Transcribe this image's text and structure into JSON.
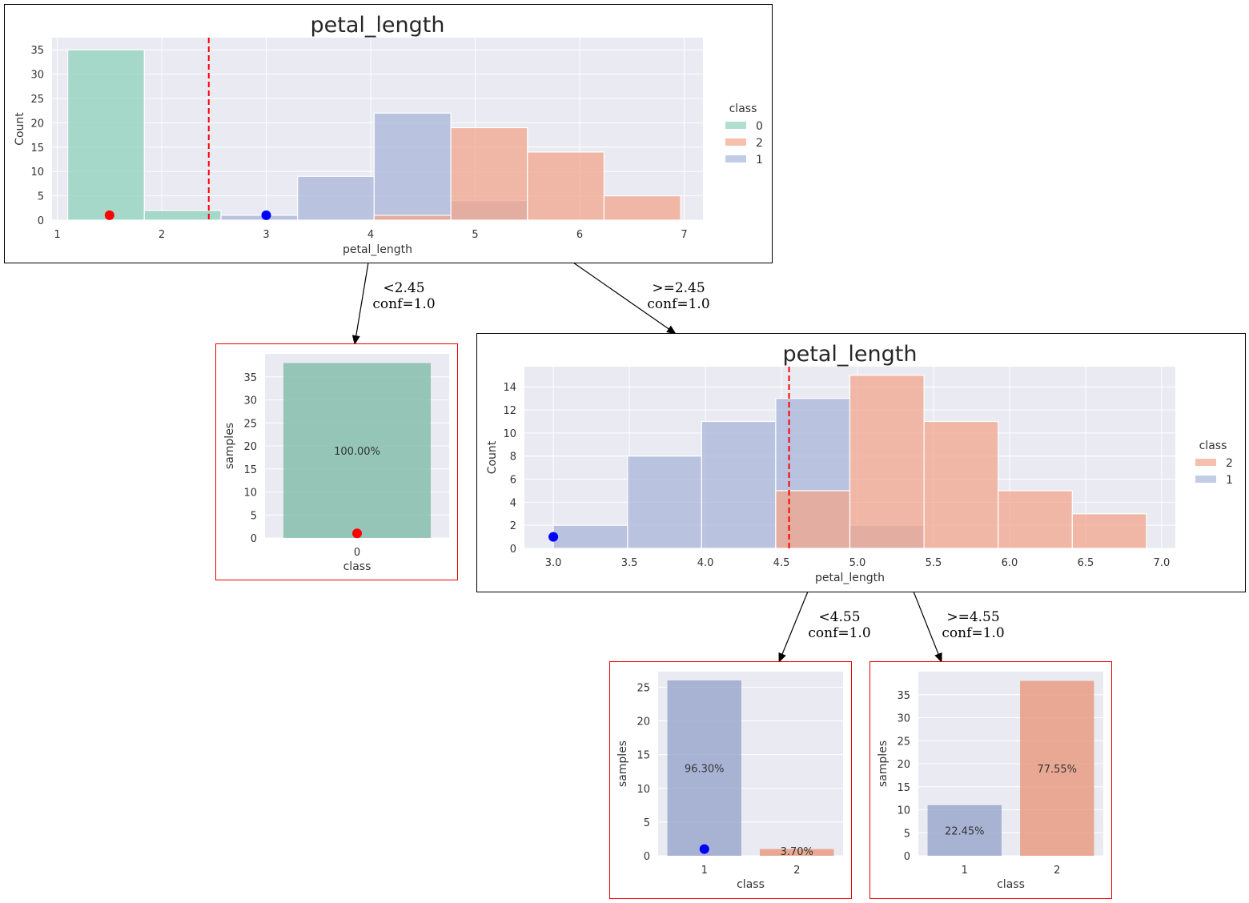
{
  "colors": {
    "class0": "#8fd1bb",
    "class1": "#a8b6da",
    "class2": "#f2a58c",
    "leaf_class0": "#80bca8",
    "leaf_class1": "#97a5cc",
    "leaf_class2": "#e9977b",
    "split_line": "#ff0000",
    "panel_bg": "#eaeaf2",
    "marker_red": "#ff0000",
    "marker_blue": "#0000ff",
    "leaf_border": "#ee0000"
  },
  "edges": [
    {
      "id": "e1",
      "condition": "<2.45",
      "conf": "conf=1.0"
    },
    {
      "id": "e2",
      "condition": ">=2.45",
      "conf": "conf=1.0"
    },
    {
      "id": "e3",
      "condition": "<4.55",
      "conf": "conf=1.0"
    },
    {
      "id": "e4",
      "condition": ">=4.55",
      "conf": "conf=1.0"
    }
  ],
  "chart_data": [
    {
      "id": "root",
      "type": "bar",
      "subtype": "histogram",
      "title": "petal_length",
      "xlabel": "petal_length",
      "ylabel": "Count",
      "xlim": [
        0.95,
        7.18
      ],
      "ylim": [
        0,
        37.5
      ],
      "xticks": [
        "1",
        "2",
        "3",
        "4",
        "5",
        "6",
        "7"
      ],
      "xtick_values": [
        1,
        2,
        3,
        4,
        5,
        6,
        7
      ],
      "yticks": [
        "0",
        "5",
        "10",
        "15",
        "20",
        "25",
        "30",
        "35"
      ],
      "ytick_values": [
        0,
        5,
        10,
        15,
        20,
        25,
        30,
        35
      ],
      "grid": true,
      "legend": {
        "title": "class",
        "entries": [
          "0",
          "2",
          "1"
        ],
        "position": "right"
      },
      "bin_edges": [
        1.1,
        1.833,
        2.567,
        3.3,
        4.033,
        4.767,
        5.5,
        6.233,
        6.967
      ],
      "series": [
        {
          "name": "0",
          "color_key": "class0",
          "values": [
            35,
            2,
            0,
            0,
            0,
            0,
            0,
            0
          ]
        },
        {
          "name": "1",
          "color_key": "class1",
          "values": [
            0,
            0,
            1,
            9,
            22,
            4,
            0,
            0
          ]
        },
        {
          "name": "2",
          "color_key": "class2",
          "values": [
            0,
            0,
            0,
            0,
            1,
            19,
            14,
            5
          ]
        }
      ],
      "split_value": 2.45,
      "markers": [
        {
          "x": 1.5,
          "y": 1,
          "color_key": "marker_red"
        },
        {
          "x": 3.0,
          "y": 1,
          "color_key": "marker_blue"
        }
      ]
    },
    {
      "id": "leaf-left",
      "type": "bar",
      "xlabel": "class",
      "ylabel": "samples",
      "categories": [
        "0"
      ],
      "values": [
        38
      ],
      "color_keys": [
        "leaf_class0"
      ],
      "labels": [
        "100.00%"
      ],
      "ylim": [
        0,
        40
      ],
      "yticks": [
        "0",
        "5",
        "10",
        "15",
        "20",
        "25",
        "30",
        "35"
      ],
      "ytick_values": [
        0,
        5,
        10,
        15,
        20,
        25,
        30,
        35
      ],
      "markers": [
        {
          "category_index": 0,
          "y": 1,
          "color_key": "marker_red"
        }
      ]
    },
    {
      "id": "node-right",
      "type": "bar",
      "subtype": "histogram",
      "title": "petal_length",
      "xlabel": "petal_length",
      "ylabel": "Count",
      "xlim": [
        2.81,
        7.09
      ],
      "ylim": [
        0,
        15.75
      ],
      "xticks": [
        "3.0",
        "3.5",
        "4.0",
        "4.5",
        "5.0",
        "5.5",
        "6.0",
        "6.5",
        "7.0"
      ],
      "xtick_values": [
        3.0,
        3.5,
        4.0,
        4.5,
        5.0,
        5.5,
        6.0,
        6.5,
        7.0
      ],
      "yticks": [
        "0",
        "2",
        "4",
        "6",
        "8",
        "10",
        "12",
        "14"
      ],
      "ytick_values": [
        0,
        2,
        4,
        6,
        8,
        10,
        12,
        14
      ],
      "grid": true,
      "legend": {
        "title": "class",
        "entries": [
          "2",
          "1"
        ],
        "position": "right"
      },
      "bin_edges": [
        3.0,
        3.4875,
        3.975,
        4.4625,
        4.95,
        5.4375,
        5.925,
        6.4125,
        6.9
      ],
      "series": [
        {
          "name": "1",
          "color_key": "class1",
          "values": [
            2,
            8,
            11,
            13,
            2,
            0,
            0,
            0
          ]
        },
        {
          "name": "2",
          "color_key": "class2",
          "values": [
            0,
            0,
            0,
            5,
            15,
            11,
            5,
            3
          ]
        }
      ],
      "split_value": 4.55,
      "markers": [
        {
          "x": 3.0,
          "y": 1,
          "color_key": "marker_blue"
        }
      ]
    },
    {
      "id": "leaf-mid",
      "type": "bar",
      "xlabel": "class",
      "ylabel": "samples",
      "categories": [
        "1",
        "2"
      ],
      "values": [
        26,
        1
      ],
      "color_keys": [
        "leaf_class1",
        "leaf_class2"
      ],
      "labels": [
        "96.30%",
        "3.70%"
      ],
      "ylim": [
        0,
        27.3
      ],
      "yticks": [
        "0",
        "5",
        "10",
        "15",
        "20",
        "25"
      ],
      "ytick_values": [
        0,
        5,
        10,
        15,
        20,
        25
      ],
      "markers": [
        {
          "category_index": 0,
          "y": 1,
          "color_key": "marker_blue"
        }
      ]
    },
    {
      "id": "leaf-right",
      "type": "bar",
      "xlabel": "class",
      "ylabel": "samples",
      "categories": [
        "1",
        "2"
      ],
      "values": [
        11,
        38
      ],
      "color_keys": [
        "leaf_class1",
        "leaf_class2"
      ],
      "labels": [
        "22.45%",
        "77.55%"
      ],
      "ylim": [
        0,
        40
      ],
      "yticks": [
        "0",
        "5",
        "10",
        "15",
        "20",
        "25",
        "30",
        "35"
      ],
      "ytick_values": [
        0,
        5,
        10,
        15,
        20,
        25,
        30,
        35
      ],
      "markers": []
    }
  ]
}
